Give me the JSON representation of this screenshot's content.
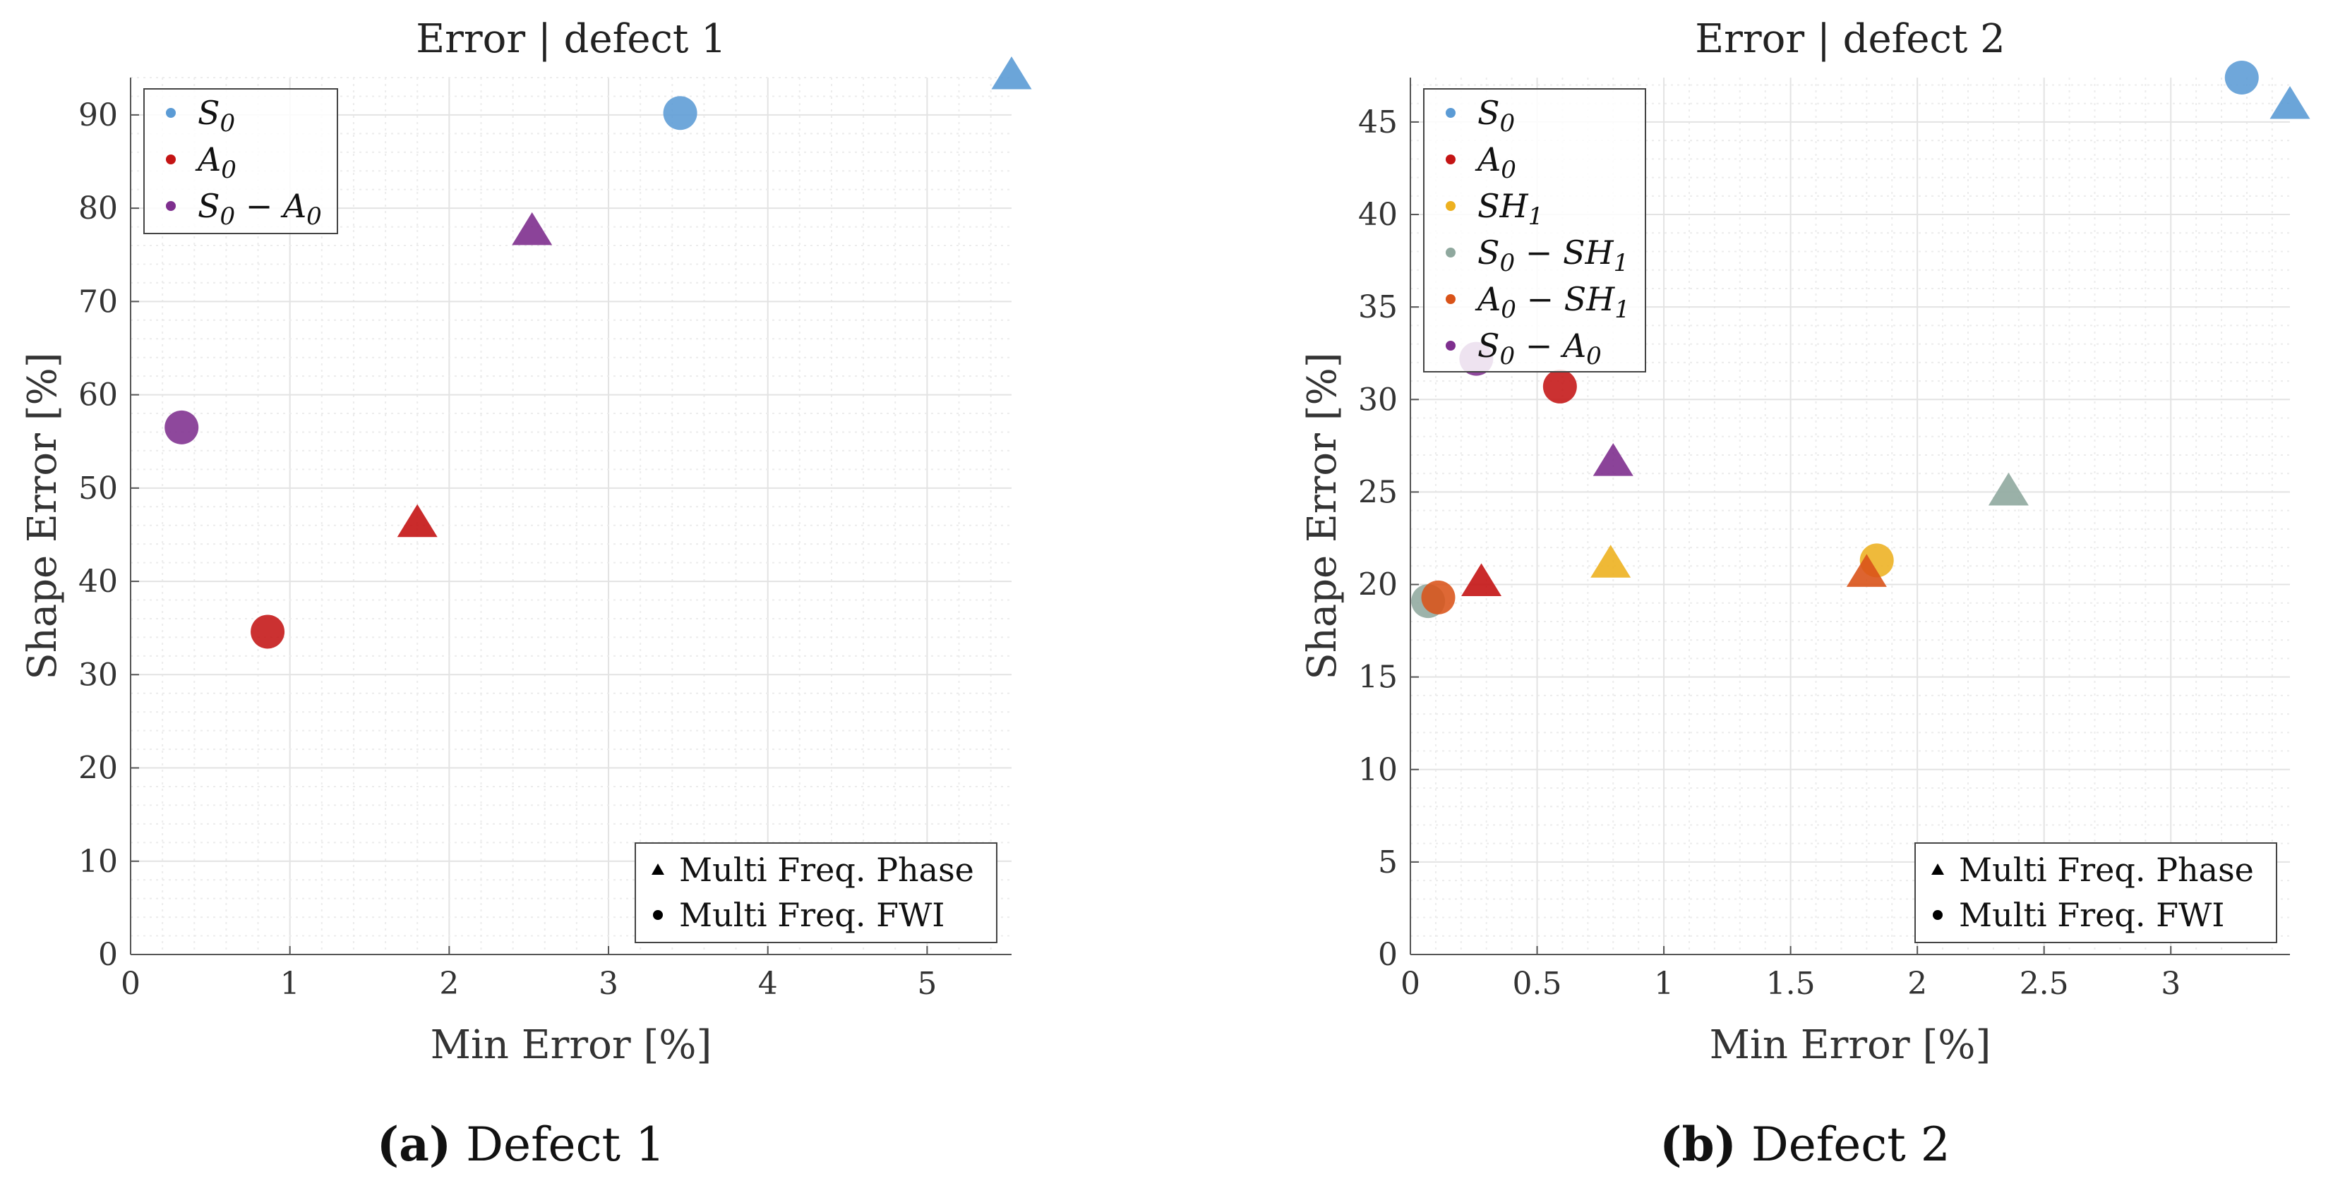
{
  "chart_data": [
    {
      "type": "scatter",
      "title": "Error | defect 1",
      "xlabel": "Min Error [%]",
      "ylabel": "Shape Error [%]",
      "caption_tag": "(a)",
      "caption": "Defect 1",
      "xlim": [
        0,
        5.53
      ],
      "ylim": [
        0,
        94
      ],
      "xticks": [
        0,
        1,
        2,
        3,
        4,
        5
      ],
      "xtick_labels": [
        "0",
        "1",
        "2",
        "3",
        "4",
        "5"
      ],
      "yticks": [
        0,
        10,
        20,
        30,
        40,
        50,
        60,
        70,
        80,
        90
      ],
      "ytick_labels": [
        "0",
        "10",
        "20",
        "30",
        "40",
        "50",
        "60",
        "70",
        "80",
        "90"
      ],
      "grid": true,
      "legend_position": "top-left",
      "marker_legend_position": "bottom-right",
      "marker_legend": [
        {
          "marker": "triangle",
          "label": "Multi Freq. Phase"
        },
        {
          "marker": "circle",
          "label": "Multi Freq. FWI"
        }
      ],
      "series": [
        {
          "name": "S0",
          "color": "#5B9BD5",
          "points": [
            {
              "method": "Phase",
              "x": 5.53,
              "y": 94.0
            },
            {
              "method": "FWI",
              "x": 3.45,
              "y": 90.2
            }
          ]
        },
        {
          "name": "A0",
          "color": "#C41414",
          "points": [
            {
              "method": "Phase",
              "x": 1.8,
              "y": 46.0
            },
            {
              "method": "FWI",
              "x": 0.86,
              "y": 34.6
            }
          ]
        },
        {
          "name": "S0 − A0",
          "color": "#7E2F8E",
          "points": [
            {
              "method": "Phase",
              "x": 2.52,
              "y": 77.3
            },
            {
              "method": "FWI",
              "x": 0.32,
              "y": 56.5
            }
          ]
        }
      ]
    },
    {
      "type": "scatter",
      "title": "Error | defect 2",
      "xlabel": "Min Error [%]",
      "ylabel": "Shape Error [%]",
      "caption_tag": "(b)",
      "caption": "Defect 2",
      "xlim": [
        0,
        3.47
      ],
      "ylim": [
        0,
        47.4
      ],
      "xticks": [
        0,
        0.5,
        1,
        1.5,
        2,
        2.5,
        3
      ],
      "xtick_labels": [
        "0",
        "0.5",
        "1",
        "1.5",
        "2",
        "2.5",
        "3"
      ],
      "yticks": [
        0,
        5,
        10,
        15,
        20,
        25,
        30,
        35,
        40,
        45
      ],
      "ytick_labels": [
        "0",
        "5",
        "10",
        "15",
        "20",
        "25",
        "30",
        "35",
        "40",
        "45"
      ],
      "grid": true,
      "legend_position": "top-left",
      "marker_legend_position": "bottom-right",
      "marker_legend": [
        {
          "marker": "triangle",
          "label": "Multi Freq. Phase"
        },
        {
          "marker": "circle",
          "label": "Multi Freq. FWI"
        }
      ],
      "series": [
        {
          "name": "S0",
          "color": "#5B9BD5",
          "points": [
            {
              "method": "Phase",
              "x": 3.47,
              "y": 45.8
            },
            {
              "method": "FWI",
              "x": 3.28,
              "y": 47.4
            }
          ]
        },
        {
          "name": "A0",
          "color": "#C41414",
          "points": [
            {
              "method": "Phase",
              "x": 0.28,
              "y": 20.0
            },
            {
              "method": "FWI",
              "x": 0.59,
              "y": 30.7
            }
          ]
        },
        {
          "name": "SH1",
          "color": "#EDB120",
          "points": [
            {
              "method": "Phase",
              "x": 0.79,
              "y": 21.0
            },
            {
              "method": "FWI",
              "x": 1.84,
              "y": 21.3
            }
          ]
        },
        {
          "name": "S0 − SH1",
          "color": "#8FA89E",
          "points": [
            {
              "method": "Phase",
              "x": 2.36,
              "y": 24.9
            },
            {
              "method": "FWI",
              "x": 0.07,
              "y": 19.1
            }
          ]
        },
        {
          "name": "A0 − SH1",
          "color": "#D95319",
          "points": [
            {
              "method": "Phase",
              "x": 1.8,
              "y": 20.5
            },
            {
              "method": "FWI",
              "x": 0.11,
              "y": 19.3
            }
          ]
        },
        {
          "name": "S0 − A0",
          "color": "#7E2F8E",
          "points": [
            {
              "method": "Phase",
              "x": 0.8,
              "y": 26.5
            },
            {
              "method": "FWI",
              "x": 0.26,
              "y": 32.2
            }
          ]
        }
      ]
    }
  ]
}
